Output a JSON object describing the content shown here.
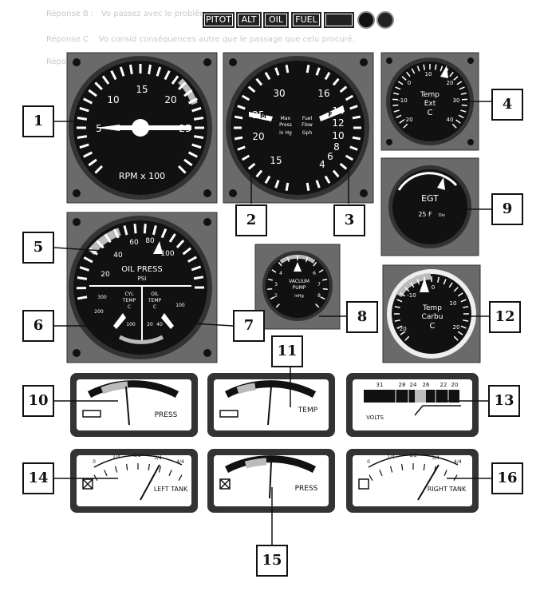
{
  "annunciators": {
    "pitot": "PITOT",
    "alt": "ALT",
    "oil": "OIL",
    "fuel": "FUEL"
  },
  "background_text": {
    "reponse_b_label": "Réponse B :",
    "reponse_b_text": "Vo passez avec le problème",
    "reponse_c_label": "Réponse C",
    "reponse_c_text": "Vo consid conséquences autre que le passage que celu procuré.",
    "reponse_label": "Réponse"
  },
  "gauges": {
    "rpm": {
      "label": "RPM x 100",
      "ticks": [
        "5",
        "10",
        "15",
        "20",
        "25"
      ]
    },
    "manifold_fuelflow": {
      "left_label": [
        "Man",
        "Press",
        "in Hg"
      ],
      "right_label": [
        "Fuel",
        "Flow",
        "Gph"
      ],
      "left_ticks": [
        "15",
        "20",
        "25",
        "30"
      ],
      "right_ticks": [
        "4",
        "6",
        "8",
        "10",
        "12",
        "14",
        "16"
      ],
      "left_pointer": "M",
      "right_pointer": "F"
    },
    "temp_ext": {
      "label": [
        "Temp",
        "Ext",
        "C"
      ],
      "ticks": [
        "-20",
        "-10",
        "0",
        "10",
        "20",
        "30",
        "40"
      ]
    },
    "egt": {
      "label": "EGT",
      "sub": "25 F",
      "sub_small": "Div"
    },
    "oil_press": {
      "label": [
        "OIL PRESS",
        "PSI"
      ],
      "ticks": [
        "20",
        "40",
        "60",
        "80",
        "100"
      ],
      "cyl_label": [
        "CYL",
        "TEMP",
        "C"
      ],
      "cyl_ticks": [
        "300",
        "200",
        "100"
      ],
      "oil_label": [
        "OIL",
        "TEMP",
        "C"
      ],
      "oil_ticks": [
        "100",
        "40",
        "20"
      ]
    },
    "vacuum": {
      "label": [
        "VACUUM",
        "PUMP",
        "inHg"
      ],
      "ticks": [
        "2",
        "3",
        "4",
        "5",
        "6",
        "7",
        "8"
      ]
    },
    "temp_carbu": {
      "label": [
        "Temp",
        "Carbu",
        "C"
      ],
      "ticks": [
        "-20",
        "-10",
        "0",
        "10",
        "20"
      ]
    },
    "press_small": {
      "label": "PRESS"
    },
    "temp_small": {
      "label": "TEMP"
    },
    "volts": {
      "label": "VOLTS",
      "ticks": [
        "31",
        "28",
        "24",
        "26",
        "22",
        "20"
      ]
    },
    "left_tank": {
      "label": "LEFT TANK",
      "ticks": [
        "0",
        "1/4",
        "1/2",
        "3/4",
        "4/4"
      ]
    },
    "press_bottom": {
      "label": "PRESS"
    },
    "right_tank": {
      "label": "RIGHT TANK",
      "ticks": [
        "0",
        "1/4",
        "1/2",
        "3/4",
        "4/4"
      ]
    }
  },
  "callouts": [
    "1",
    "2",
    "3",
    "4",
    "5",
    "6",
    "7",
    "8",
    "9",
    "10",
    "11",
    "12",
    "13",
    "14",
    "15",
    "16"
  ]
}
